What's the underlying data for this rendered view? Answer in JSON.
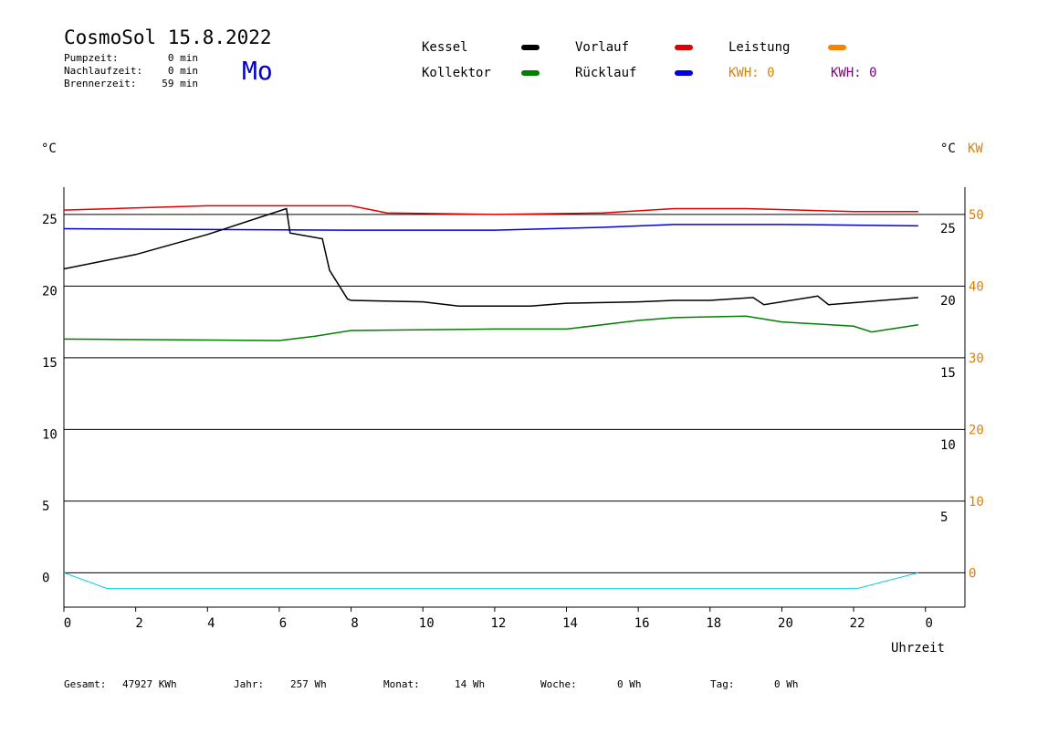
{
  "header": {
    "title": "CosmoSol 15.8.2022",
    "day": "Mo",
    "stats": [
      [
        "Pumpzeit:",
        "0 min"
      ],
      [
        "Nachlaufzeit:",
        "0 min"
      ],
      [
        "Brennerzeit:",
        "59 min"
      ]
    ]
  },
  "legend": [
    {
      "name": "Kessel",
      "color": "#000000"
    },
    {
      "name": "Vorlauf",
      "color": "#e00000"
    },
    {
      "name": "Leistung",
      "color": "#ff8000"
    },
    {
      "name": "Kollektor",
      "color": "#008000"
    },
    {
      "name": "Rücklauf",
      "color": "#0000e0"
    }
  ],
  "kwh": [
    {
      "label": "KWH: 0",
      "color": "#e08000"
    },
    {
      "label": "KWH: 0",
      "color": "#800080"
    }
  ],
  "footer": [
    [
      "Gesamt:",
      "47927 KWh"
    ],
    [
      "Jahr:",
      "257 Wh"
    ],
    [
      "Monat:",
      "14 Wh"
    ],
    [
      "Woche:",
      "0 Wh"
    ],
    [
      "Tag:",
      "0 Wh"
    ]
  ],
  "chart_data": {
    "type": "line",
    "ylabel": "°C",
    "y3label": "°C",
    "y2label": "KW",
    "xlabel": "Uhrzeit",
    "xlim": [
      0,
      25.1
    ],
    "xticks": [
      0,
      2,
      4,
      6,
      8,
      10,
      12,
      14,
      16,
      18,
      20,
      22,
      {
        "value": 24,
        "label": "0"
      }
    ],
    "ylim": [
      -2.4,
      26.9
    ],
    "yticks": [
      0,
      5,
      10,
      15,
      20,
      25
    ],
    "y2lim": [
      -4.8,
      53.8
    ],
    "y2ticks": [
      0,
      10,
      20,
      30,
      40,
      50
    ],
    "y3lim": [
      -1.2,
      27.9
    ],
    "y3ticks": [
      5,
      10,
      15,
      20,
      25
    ],
    "grid": true,
    "series": [
      {
        "name": "Vorlauf",
        "color": "#e00000",
        "x": [
          0,
          4,
          8,
          9,
          12,
          15,
          17,
          19,
          22,
          23.8
        ],
        "values": [
          25.3,
          25.6,
          25.6,
          25.1,
          25.0,
          25.1,
          25.4,
          25.4,
          25.2,
          25.2
        ]
      },
      {
        "name": "Rücklauf",
        "color": "#0000e0",
        "x": [
          0,
          8,
          12,
          15,
          17,
          20,
          23.8
        ],
        "values": [
          24.0,
          23.9,
          23.9,
          24.1,
          24.3,
          24.3,
          24.2
        ]
      },
      {
        "name": "Kessel",
        "color": "#000000",
        "x": [
          0,
          2,
          4,
          6.2,
          6.3,
          7.2,
          7.4,
          7.9,
          8,
          10,
          11,
          13,
          14,
          16,
          17,
          18,
          19.2,
          19.5,
          21,
          21.3,
          23.8
        ],
        "values": [
          21.2,
          22.2,
          23.6,
          25.4,
          23.7,
          23.3,
          21.1,
          19.1,
          19.0,
          18.9,
          18.6,
          18.6,
          18.8,
          18.9,
          19.0,
          19.0,
          19.2,
          18.7,
          19.3,
          18.7,
          19.2
        ]
      },
      {
        "name": "Kollektor",
        "color": "#008000",
        "x": [
          0,
          6,
          7,
          8,
          12,
          14,
          16,
          17,
          19,
          20,
          22,
          22.5,
          23.8
        ],
        "values": [
          16.3,
          16.2,
          16.5,
          16.9,
          17.0,
          17.0,
          17.6,
          17.8,
          17.9,
          17.5,
          17.2,
          16.8,
          17.3
        ]
      },
      {
        "color": "#00d0d0",
        "x": [
          0,
          1.2,
          6.1,
          9.2,
          11.7,
          14.6,
          18.3,
          22.1,
          23.8
        ],
        "values": [
          0,
          -1.1,
          -1.1,
          -1.1,
          -1.1,
          -1.1,
          -1.1,
          -1.1,
          0
        ]
      }
    ]
  }
}
